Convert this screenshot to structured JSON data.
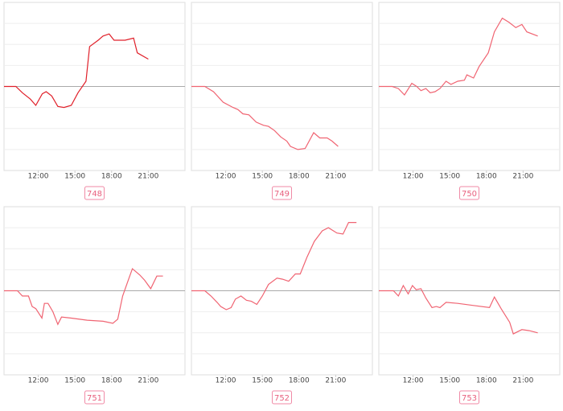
{
  "chart_data": [
    {
      "type": "line",
      "label": "748",
      "color": "#e0202a",
      "x": [
        9.2,
        10.17,
        10.7,
        11.35,
        11.8,
        12.33,
        12.65,
        13.1,
        13.6,
        14.1,
        14.7,
        15.25,
        15.9,
        16.2,
        16.9,
        17.3,
        17.8,
        18.2,
        19.1,
        19.8,
        20.1,
        21.0
      ],
      "values": [
        0,
        0,
        -0.3,
        -0.6,
        -0.9,
        -0.35,
        -0.25,
        -0.45,
        -0.95,
        -1,
        -0.9,
        -0.3,
        0.25,
        1.9,
        2.2,
        2.4,
        2.5,
        2.2,
        2.2,
        2.3,
        1.6,
        1.3
      ],
      "xlim": [
        9.2,
        24
      ],
      "xticks": [
        {
          "value": 12,
          "label": "12:00"
        },
        {
          "value": 15,
          "label": "15:00"
        },
        {
          "value": 18,
          "label": "18:00"
        },
        {
          "value": 21,
          "label": "21:00"
        }
      ],
      "ylim": [
        -4,
        4
      ],
      "yticks": [
        -3,
        -2,
        -1,
        0,
        1,
        2,
        3
      ],
      "grid": true
    },
    {
      "type": "line",
      "label": "749",
      "color": "#f06472",
      "x": [
        9.2,
        10.3,
        11.0,
        11.8,
        12.6,
        13.0,
        13.4,
        13.9,
        14.5,
        15.1,
        15.5,
        16.0,
        16.5,
        17.0,
        17.3,
        17.9,
        18.5,
        19.2,
        19.7,
        20.3,
        20.7,
        21.2
      ],
      "values": [
        0,
        0,
        -0.25,
        -0.75,
        -1,
        -1.1,
        -1.3,
        -1.35,
        -1.7,
        -1.85,
        -1.9,
        -2.1,
        -2.4,
        -2.6,
        -2.85,
        -3,
        -2.95,
        -2.2,
        -2.45,
        -2.45,
        -2.6,
        -2.85
      ],
      "xlim": [
        9.2,
        24
      ],
      "xticks": [
        {
          "value": 12,
          "label": "12:00"
        },
        {
          "value": 15,
          "label": "15:00"
        },
        {
          "value": 18,
          "label": "18:00"
        },
        {
          "value": 21,
          "label": "21:00"
        }
      ],
      "ylim": [
        -4,
        4
      ],
      "yticks": [
        -3,
        -2,
        -1,
        0,
        1,
        2,
        3
      ],
      "grid": true
    },
    {
      "type": "line",
      "label": "750",
      "color": "#f06472",
      "x": [
        9.2,
        10.3,
        10.8,
        11.3,
        11.9,
        12.3,
        12.65,
        13.05,
        13.4,
        13.8,
        14.2,
        14.7,
        15.1,
        15.65,
        16.2,
        16.4,
        16.95,
        17.4,
        18.15,
        18.65,
        19.3,
        19.85,
        20.4,
        20.9,
        21.3,
        22.2
      ],
      "values": [
        0,
        0,
        -0.1,
        -0.4,
        0.15,
        0,
        -0.2,
        -0.1,
        -0.3,
        -0.25,
        -0.1,
        0.25,
        0.1,
        0.25,
        0.3,
        0.55,
        0.4,
        0.95,
        1.6,
        2.6,
        3.25,
        3.05,
        2.8,
        2.95,
        2.6,
        2.4
      ],
      "xlim": [
        9.2,
        24
      ],
      "xticks": [
        {
          "value": 12,
          "label": "12:00"
        },
        {
          "value": 15,
          "label": "15:00"
        },
        {
          "value": 18,
          "label": "18:00"
        },
        {
          "value": 21,
          "label": "21:00"
        }
      ],
      "ylim": [
        -4,
        4
      ],
      "yticks": [
        -3,
        -2,
        -1,
        0,
        1,
        2,
        3
      ],
      "grid": true
    },
    {
      "type": "line",
      "label": "751",
      "color": "#f06472",
      "x": [
        9.2,
        10.3,
        10.7,
        11.2,
        11.5,
        11.8,
        12.3,
        12.5,
        12.8,
        13.2,
        13.6,
        13.9,
        14.7,
        16.0,
        17.3,
        18.1,
        18.5,
        18.9,
        19.3,
        19.7,
        20.3,
        20.7,
        21.2,
        21.7,
        22.2
      ],
      "values": [
        0,
        0,
        -0.25,
        -0.25,
        -0.75,
        -0.85,
        -1.3,
        -0.6,
        -0.6,
        -1,
        -1.6,
        -1.25,
        -1.3,
        -1.4,
        -1.45,
        -1.55,
        -1.35,
        -0.25,
        0.4,
        1.05,
        0.75,
        0.5,
        0.1,
        0.7,
        0.7
      ],
      "xlim": [
        9.2,
        24
      ],
      "xticks": [
        {
          "value": 12,
          "label": "12:00"
        },
        {
          "value": 15,
          "label": "15:00"
        },
        {
          "value": 18,
          "label": "18:00"
        },
        {
          "value": 21,
          "label": "21:00"
        }
      ],
      "ylim": [
        -4,
        4
      ],
      "yticks": [
        -3,
        -2,
        -1,
        0,
        1,
        2,
        3
      ],
      "grid": true
    },
    {
      "type": "line",
      "label": "752",
      "color": "#f06472",
      "x": [
        9.2,
        10.3,
        10.8,
        11.3,
        11.6,
        12.05,
        12.45,
        12.8,
        13.25,
        13.7,
        14.1,
        14.55,
        15.0,
        15.5,
        16.2,
        16.65,
        17.15,
        17.7,
        18.1,
        18.65,
        19.25,
        19.9,
        20.4,
        21.1,
        21.6,
        22.05,
        22.7
      ],
      "values": [
        0,
        0,
        -0.25,
        -0.55,
        -0.75,
        -0.9,
        -0.8,
        -0.4,
        -0.25,
        -0.45,
        -0.5,
        -0.65,
        -0.25,
        0.3,
        0.6,
        0.55,
        0.45,
        0.8,
        0.8,
        1.6,
        2.35,
        2.85,
        3,
        2.75,
        2.7,
        3.25,
        3.25
      ],
      "xlim": [
        9.2,
        24
      ],
      "xticks": [
        {
          "value": 12,
          "label": "12:00"
        },
        {
          "value": 15,
          "label": "15:00"
        },
        {
          "value": 18,
          "label": "18:00"
        },
        {
          "value": 21,
          "label": "21:00"
        }
      ],
      "ylim": [
        -4,
        4
      ],
      "yticks": [
        -3,
        -2,
        -1,
        0,
        1,
        2,
        3
      ],
      "grid": true
    },
    {
      "type": "line",
      "label": "753",
      "color": "#f06472",
      "x": [
        9.2,
        10.4,
        10.8,
        11.2,
        11.6,
        11.95,
        12.25,
        12.65,
        13.05,
        13.55,
        13.9,
        14.2,
        14.7,
        15.65,
        16.95,
        18.25,
        18.65,
        19.25,
        19.9,
        20.2,
        20.9,
        21.5,
        22.2
      ],
      "values": [
        0,
        0,
        -0.25,
        0.25,
        -0.15,
        0.25,
        0.05,
        0.1,
        -0.35,
        -0.8,
        -0.75,
        -0.8,
        -0.55,
        -0.6,
        -0.7,
        -0.8,
        -0.3,
        -0.9,
        -1.5,
        -2.05,
        -1.85,
        -1.9,
        -2.0
      ],
      "xlim": [
        9.2,
        24
      ],
      "xticks": [
        {
          "value": 12,
          "label": "12:00"
        },
        {
          "value": 15,
          "label": "15:00"
        },
        {
          "value": 18,
          "label": "18:00"
        },
        {
          "value": 21,
          "label": "21:00"
        }
      ],
      "ylim": [
        -4,
        4
      ],
      "yticks": [
        -3,
        -2,
        -1,
        0,
        1,
        2,
        3
      ],
      "grid": true
    }
  ]
}
